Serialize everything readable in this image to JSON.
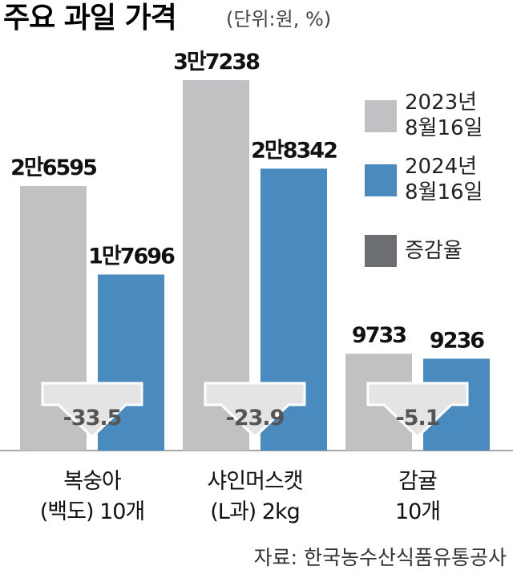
{
  "chart_data": {
    "type": "bar",
    "title": "주요 과일 가격",
    "subtitle": "(단위:원, %)",
    "source": "자료: 한국농수산식품유통공사",
    "categories": [
      "복숭아\n(백도) 10개",
      "샤인머스캣\n(L과) 2kg",
      "감귤\n10개"
    ],
    "series": [
      {
        "name": "2023년\n8월16일",
        "color": "#c1c1c3",
        "values": [
          26595,
          37238,
          9733
        ],
        "value_labels": [
          "2만6595",
          "3만7238",
          "9733"
        ]
      },
      {
        "name": "2024년\n8월16일",
        "color": "#4a8bbf",
        "values": [
          17696,
          28342,
          9236
        ],
        "value_labels": [
          "1만7696",
          "2만8342",
          "9236"
        ]
      },
      {
        "name": "증감율",
        "color": "#6d6e71",
        "values": [
          -33.5,
          -23.9,
          -5.1
        ]
      }
    ]
  }
}
